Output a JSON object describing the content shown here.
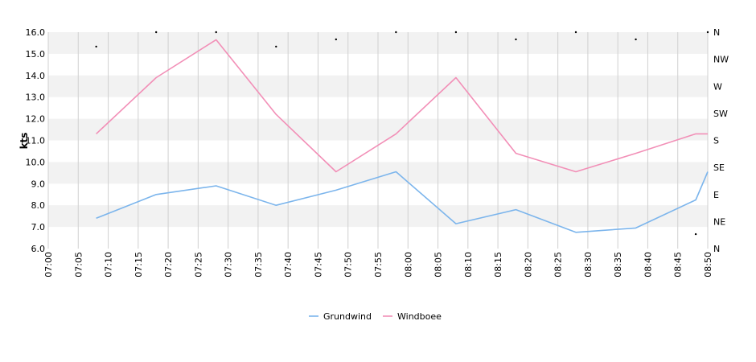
{
  "chart_data": {
    "type": "line",
    "ylabel": "kts",
    "ylim": [
      6,
      16
    ],
    "y_ticks": [
      "6.0",
      "7.0",
      "8.0",
      "9.0",
      "10.0",
      "11.0",
      "12.0",
      "13.0",
      "14.0",
      "15.0",
      "16.0"
    ],
    "x_range": [
      "07:00",
      "08:50"
    ],
    "x_ticks": [
      "07:00",
      "07:05",
      "07:10",
      "07:15",
      "07:20",
      "07:25",
      "07:30",
      "07:35",
      "07:40",
      "07:45",
      "07:50",
      "07:55",
      "08:00",
      "08:05",
      "08:10",
      "08:15",
      "08:20",
      "08:25",
      "08:30",
      "08:35",
      "08:40",
      "08:45",
      "08:50"
    ],
    "direction_axis": {
      "labels": [
        "N",
        "NE",
        "E",
        "SE",
        "S",
        "SW",
        "W",
        "NW",
        "N"
      ],
      "range_degrees": [
        0,
        360
      ]
    },
    "grid": {
      "horizontal_bands": true,
      "band_color": "#f2f2f2",
      "vertical_lines": true,
      "line_color": "#d0d0d0"
    },
    "series": [
      {
        "name": "Grundwind",
        "color": "#7cb5ec",
        "points": [
          [
            "07:08",
            7.4
          ],
          [
            "07:18",
            8.5
          ],
          [
            "07:28",
            8.9
          ],
          [
            "07:38",
            8.0
          ],
          [
            "07:48",
            8.7
          ],
          [
            "07:58",
            9.55
          ],
          [
            "08:08",
            7.15
          ],
          [
            "08:18",
            7.8
          ],
          [
            "08:28",
            6.75
          ],
          [
            "08:38",
            6.95
          ],
          [
            "08:48",
            8.25
          ],
          [
            "08:50",
            9.55
          ]
        ]
      },
      {
        "name": "Windboee",
        "color": "#f28fb7",
        "points": [
          [
            "07:08",
            11.3
          ],
          [
            "07:18",
            13.9
          ],
          [
            "07:28",
            15.65
          ],
          [
            "07:38",
            12.2
          ],
          [
            "07:48",
            9.55
          ],
          [
            "07:58",
            11.3
          ],
          [
            "08:08",
            13.9
          ],
          [
            "08:18",
            10.4
          ],
          [
            "08:28",
            9.55
          ],
          [
            "08:38",
            10.4
          ],
          [
            "08:48",
            11.3
          ],
          [
            "08:50",
            11.3
          ]
        ]
      }
    ],
    "direction_points": [
      [
        "07:08",
        336
      ],
      [
        "07:18",
        360
      ],
      [
        "07:28",
        360
      ],
      [
        "07:38",
        336
      ],
      [
        "07:48",
        348
      ],
      [
        "07:58",
        360
      ],
      [
        "08:08",
        360
      ],
      [
        "08:18",
        348
      ],
      [
        "08:28",
        360
      ],
      [
        "08:38",
        348
      ],
      [
        "08:48",
        24
      ],
      [
        "08:50",
        360
      ]
    ],
    "legend": {
      "position": "bottom-center",
      "items": [
        "Grundwind",
        "Windboee"
      ]
    }
  }
}
